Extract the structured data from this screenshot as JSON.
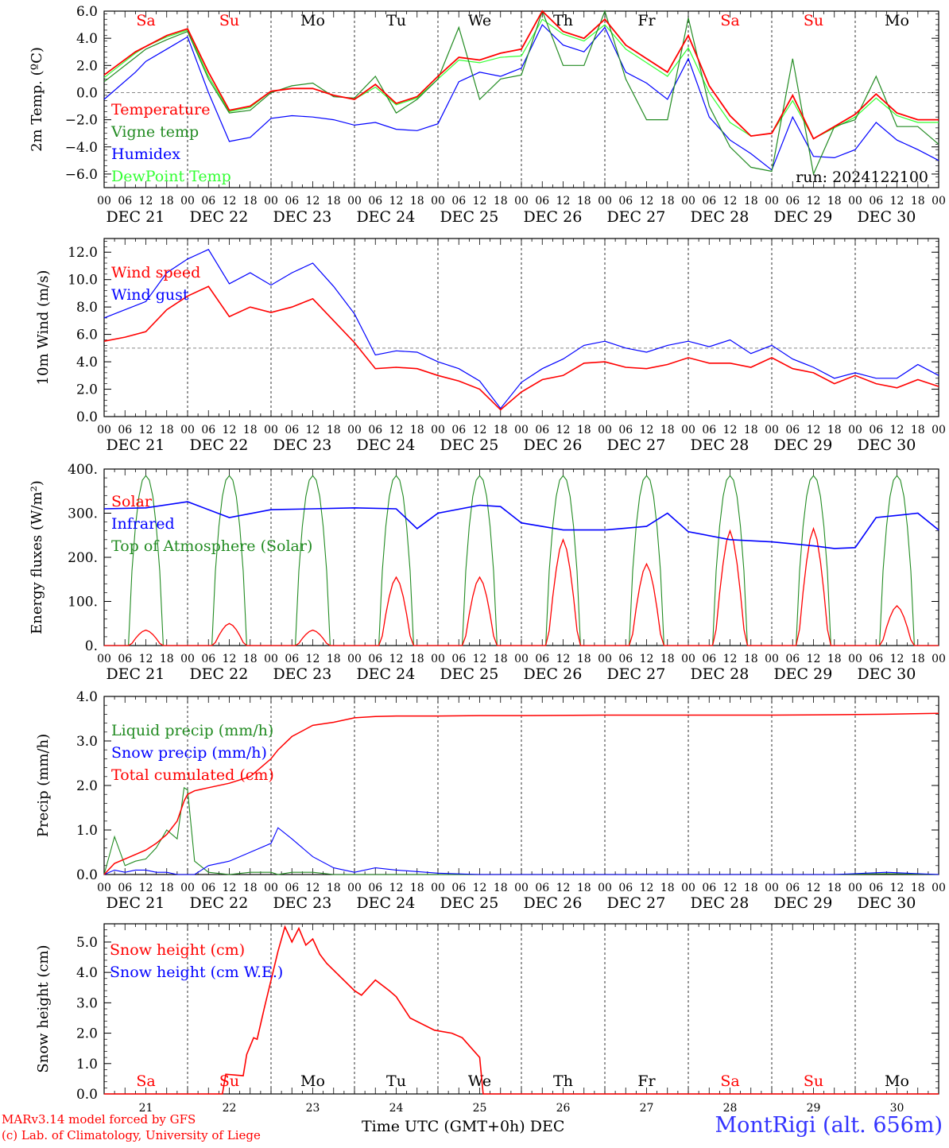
{
  "days_top": [
    {
      "label": "Sa",
      "color": "#ff0000"
    },
    {
      "label": "Su",
      "color": "#ff0000"
    },
    {
      "label": "Mo",
      "color": "#000000"
    },
    {
      "label": "Tu",
      "color": "#000000"
    },
    {
      "label": "We",
      "color": "#000000"
    },
    {
      "label": "Th",
      "color": "#000000"
    },
    {
      "label": "Fr",
      "color": "#000000"
    },
    {
      "label": "Sa",
      "color": "#ff0000"
    },
    {
      "label": "Su",
      "color": "#ff0000"
    },
    {
      "label": "Mo",
      "color": "#000000"
    }
  ],
  "date_labels": [
    "DEC 21",
    "DEC 22",
    "DEC 23",
    "DEC 24",
    "DEC 25",
    "DEC 26",
    "DEC 27",
    "DEC 28",
    "DEC 29",
    "DEC 30"
  ],
  "hour_labels": [
    "00",
    "06",
    "12",
    "18"
  ],
  "last_hour_label": "00",
  "bottom_day_numbers": [
    "21",
    "22",
    "23",
    "24",
    "25",
    "26",
    "27",
    "28",
    "29",
    "30"
  ],
  "footer": {
    "model_line": "MARv3.14 model forced by GFS",
    "lab_line": "(c) Lab. of Climatology, University of Liege",
    "xlabel": "Time UTC (GMT+0h)",
    "month": "DEC",
    "station": "MontRigi (alt. 656m)"
  },
  "chart_data": [
    {
      "type": "line",
      "ylabel": "2m Temp. (ºC)",
      "ylim": [
        -7,
        6
      ],
      "ticks": [
        "6.0",
        "4.0",
        "2.0",
        "0.0",
        "−2.0",
        "−4.0",
        "−6.0"
      ],
      "tick_values": [
        6,
        4,
        2,
        0,
        -2,
        -4,
        -6
      ],
      "ref_line": 0,
      "run_label": "run: 2024122100",
      "x_hours": [
        0,
        9,
        12,
        18,
        24,
        30,
        36,
        42,
        48,
        54,
        60,
        66,
        72,
        78,
        84,
        90,
        96,
        102,
        108,
        114,
        120,
        126,
        132,
        138,
        144,
        150,
        156,
        162,
        168,
        174,
        180,
        186,
        192,
        198,
        204,
        210,
        216,
        222,
        228,
        234,
        240
      ],
      "series": [
        {
          "name": "Temperature",
          "color": "#ff0000",
          "values": [
            1.3,
            3.0,
            3.4,
            4.2,
            4.7,
            1.5,
            -1.3,
            -1.0,
            0.1,
            0.3,
            0.3,
            -0.2,
            -0.5,
            0.6,
            -0.8,
            -0.3,
            1.2,
            2.6,
            2.4,
            2.9,
            3.2,
            6.0,
            4.5,
            4.0,
            5.4,
            3.5,
            2.5,
            1.5,
            4.2,
            0.5,
            -1.7,
            -3.2,
            -3.0,
            -0.2,
            -3.4,
            -2.5,
            -1.6,
            -0.1,
            -1.5,
            -2.0,
            -2.0
          ]
        },
        {
          "name": "Vigne temp",
          "color": "#228b22",
          "values": [
            0.8,
            2.6,
            3.2,
            3.9,
            4.5,
            1.0,
            -1.5,
            -1.3,
            0.0,
            0.5,
            0.7,
            -0.3,
            -0.4,
            1.2,
            -1.5,
            -0.5,
            1.0,
            4.8,
            -0.5,
            1.0,
            1.3,
            6.0,
            2.0,
            2.0,
            6.0,
            1.0,
            -2.0,
            -2.0,
            5.5,
            -1.0,
            -4.0,
            -5.5,
            -5.8,
            2.5,
            -6.0,
            -2.5,
            -2.0,
            1.2,
            -2.5,
            -2.5,
            -3.8
          ]
        },
        {
          "name": "Humidex",
          "color": "#0000ff",
          "values": [
            -0.5,
            1.5,
            2.3,
            3.2,
            4.1,
            0.0,
            -3.6,
            -3.3,
            -1.9,
            -1.7,
            -1.8,
            -2.0,
            -2.4,
            -2.2,
            -2.7,
            -2.8,
            -2.3,
            0.8,
            1.5,
            1.2,
            1.8,
            5.0,
            3.5,
            3.0,
            4.8,
            1.5,
            0.7,
            -0.5,
            2.5,
            -1.8,
            -3.5,
            -4.5,
            -5.7,
            -1.8,
            -4.7,
            -4.8,
            -4.2,
            -2.2,
            -3.5,
            -4.2,
            -5.0
          ]
        },
        {
          "name": "DewPoint Temp",
          "color": "#33ff33",
          "values": [
            1.1,
            2.9,
            3.4,
            4.1,
            4.6,
            1.2,
            -1.4,
            -1.1,
            0.1,
            0.3,
            0.3,
            -0.2,
            -0.5,
            0.4,
            -0.9,
            -0.4,
            1.0,
            2.4,
            2.2,
            2.6,
            2.7,
            5.4,
            4.3,
            3.8,
            5.0,
            3.2,
            2.2,
            1.2,
            3.3,
            0.0,
            -2.2,
            -3.2,
            -3.0,
            -0.6,
            -3.4,
            -2.6,
            -1.8,
            -0.4,
            -1.7,
            -2.2,
            -2.2
          ]
        }
      ]
    },
    {
      "type": "line",
      "ylabel": "10m Wind (m/s)",
      "ylim": [
        0,
        13
      ],
      "ticks": [
        "12.0",
        "10.0",
        "8.0",
        "6.0",
        "4.0",
        "2.0",
        "0.0"
      ],
      "tick_values": [
        12,
        10,
        8,
        6,
        4,
        2,
        0
      ],
      "ref_line": 5,
      "x_hours": [
        0,
        6,
        12,
        18,
        24,
        30,
        36,
        42,
        48,
        54,
        60,
        66,
        72,
        78,
        84,
        90,
        96,
        102,
        108,
        114,
        120,
        126,
        132,
        138,
        144,
        150,
        156,
        162,
        168,
        174,
        180,
        186,
        192,
        198,
        204,
        210,
        216,
        222,
        228,
        234,
        240
      ],
      "series": [
        {
          "name": "Wind speed",
          "color": "#ff0000",
          "values": [
            5.5,
            5.8,
            6.2,
            7.8,
            8.8,
            9.5,
            7.3,
            8.0,
            7.6,
            8.0,
            8.6,
            7.0,
            5.4,
            3.5,
            3.6,
            3.5,
            3.0,
            2.6,
            2.0,
            0.5,
            1.8,
            2.7,
            3.0,
            3.9,
            4.0,
            3.6,
            3.5,
            3.8,
            4.3,
            3.9,
            3.9,
            3.6,
            4.3,
            3.5,
            3.2,
            2.4,
            3.0,
            2.4,
            2.1,
            2.7,
            2.2
          ]
        },
        {
          "name": "Wind gust",
          "color": "#0000ff",
          "values": [
            7.2,
            7.8,
            8.4,
            10.5,
            11.5,
            12.2,
            9.7,
            10.5,
            9.6,
            10.5,
            11.2,
            9.5,
            7.5,
            4.5,
            4.8,
            4.7,
            4.0,
            3.5,
            2.6,
            0.6,
            2.5,
            3.5,
            4.2,
            5.2,
            5.5,
            5.0,
            4.7,
            5.2,
            5.5,
            5.1,
            5.6,
            4.6,
            5.2,
            4.2,
            3.6,
            2.8,
            3.2,
            2.8,
            2.8,
            3.8,
            3.0
          ]
        }
      ]
    },
    {
      "type": "line",
      "ylabel": "Energy fluxes (W/m²)",
      "ylim": [
        0,
        400
      ],
      "ticks": [
        "400.",
        "300.",
        "200.",
        "100.",
        "0."
      ],
      "tick_values": [
        400,
        300,
        200,
        100,
        0
      ],
      "daily_peaks_hours": [
        12,
        36,
        60,
        84,
        108,
        132,
        156,
        180,
        204,
        228
      ],
      "toa_peak": 385,
      "solar_peaks": [
        35,
        50,
        35,
        155,
        155,
        240,
        185,
        260,
        265,
        90
      ],
      "series": [
        {
          "name": "Solar",
          "color": "#ff0000"
        },
        {
          "name": "Infrared",
          "color": "#0000ff",
          "x_hours": [
            0,
            12,
            24,
            36,
            48,
            60,
            72,
            84,
            90,
            96,
            108,
            114,
            120,
            132,
            144,
            156,
            162,
            168,
            180,
            192,
            204,
            210,
            216,
            222,
            228,
            234,
            240
          ],
          "values": [
            310,
            312,
            326,
            290,
            308,
            310,
            312,
            310,
            265,
            300,
            318,
            315,
            278,
            262,
            262,
            270,
            300,
            258,
            240,
            235,
            226,
            220,
            222,
            290,
            295,
            300,
            262
          ]
        },
        {
          "name": "Top of Atmosphere (Solar)",
          "color": "#228b22"
        }
      ]
    },
    {
      "type": "line",
      "ylabel": "Precip (mm/h)",
      "ylim": [
        0,
        4
      ],
      "ticks": [
        "4.0",
        "3.0",
        "2.0",
        "1.0",
        "0.0"
      ],
      "tick_values": [
        4,
        3,
        2,
        1,
        0
      ],
      "x_hours": [
        0,
        3,
        6,
        9,
        12,
        15,
        18,
        21,
        23,
        24,
        26,
        30,
        36,
        42,
        48,
        50,
        54,
        60,
        66,
        72,
        78,
        84,
        96,
        108,
        120,
        144,
        168,
        192,
        210,
        225,
        240
      ],
      "series": [
        {
          "name": "Liquid precip (mm/h)",
          "color": "#228b22",
          "values": [
            0.0,
            0.85,
            0.2,
            0.3,
            0.35,
            0.6,
            1.0,
            0.8,
            1.95,
            1.9,
            0.3,
            0.05,
            0.0,
            0.05,
            0.05,
            0.0,
            0.05,
            0.05,
            0.0,
            0.0,
            0.0,
            0.0,
            0.0,
            0.0,
            0.0,
            0.0,
            0.0,
            0.0,
            0.0,
            0.02,
            0.0
          ]
        },
        {
          "name": "Snow precip (mm/h)",
          "color": "#0000ff",
          "values": [
            0.0,
            0.1,
            0.05,
            0.1,
            0.1,
            0.05,
            0.05,
            0.0,
            0.0,
            0.0,
            0.0,
            0.2,
            0.3,
            0.5,
            0.7,
            1.05,
            0.8,
            0.4,
            0.15,
            0.05,
            0.15,
            0.1,
            0.03,
            0.0,
            0.0,
            0.0,
            0.0,
            0.0,
            0.0,
            0.05,
            0.0
          ]
        },
        {
          "name": "Total cumulated (cm)",
          "color": "#ff0000",
          "values": [
            0.0,
            0.25,
            0.35,
            0.45,
            0.55,
            0.7,
            0.9,
            1.2,
            1.65,
            1.8,
            1.88,
            1.95,
            2.05,
            2.2,
            2.6,
            2.8,
            3.1,
            3.35,
            3.42,
            3.52,
            3.55,
            3.56,
            3.56,
            3.57,
            3.57,
            3.58,
            3.58,
            3.58,
            3.59,
            3.6,
            3.62
          ]
        }
      ]
    },
    {
      "type": "line",
      "ylabel": "Snow height (cm)",
      "ylim": [
        0,
        5.6
      ],
      "ticks": [
        "5.0",
        "4.0",
        "3.0",
        "2.0",
        "1.0",
        "0.0"
      ],
      "tick_values": [
        5,
        4,
        3,
        2,
        1,
        0
      ],
      "x_hours": [
        0,
        34,
        35,
        40,
        41,
        43,
        44,
        46,
        50,
        52,
        54,
        56,
        58,
        60,
        62,
        64,
        72,
        74,
        78,
        82,
        84,
        88,
        95,
        100,
        103,
        108,
        109,
        240
      ],
      "series": [
        {
          "name": "Snow height (cm)",
          "color": "#ff0000",
          "values": [
            0.0,
            0.0,
            0.65,
            0.6,
            1.3,
            1.85,
            1.8,
            2.8,
            4.7,
            5.5,
            5.0,
            5.45,
            4.9,
            5.1,
            4.6,
            4.3,
            3.4,
            3.25,
            3.75,
            3.4,
            3.2,
            2.5,
            2.1,
            2.0,
            1.85,
            1.2,
            0.0,
            0.0
          ]
        },
        {
          "name": "Snow height (cm W.E.)",
          "color": "#0000ff"
        }
      ]
    }
  ]
}
